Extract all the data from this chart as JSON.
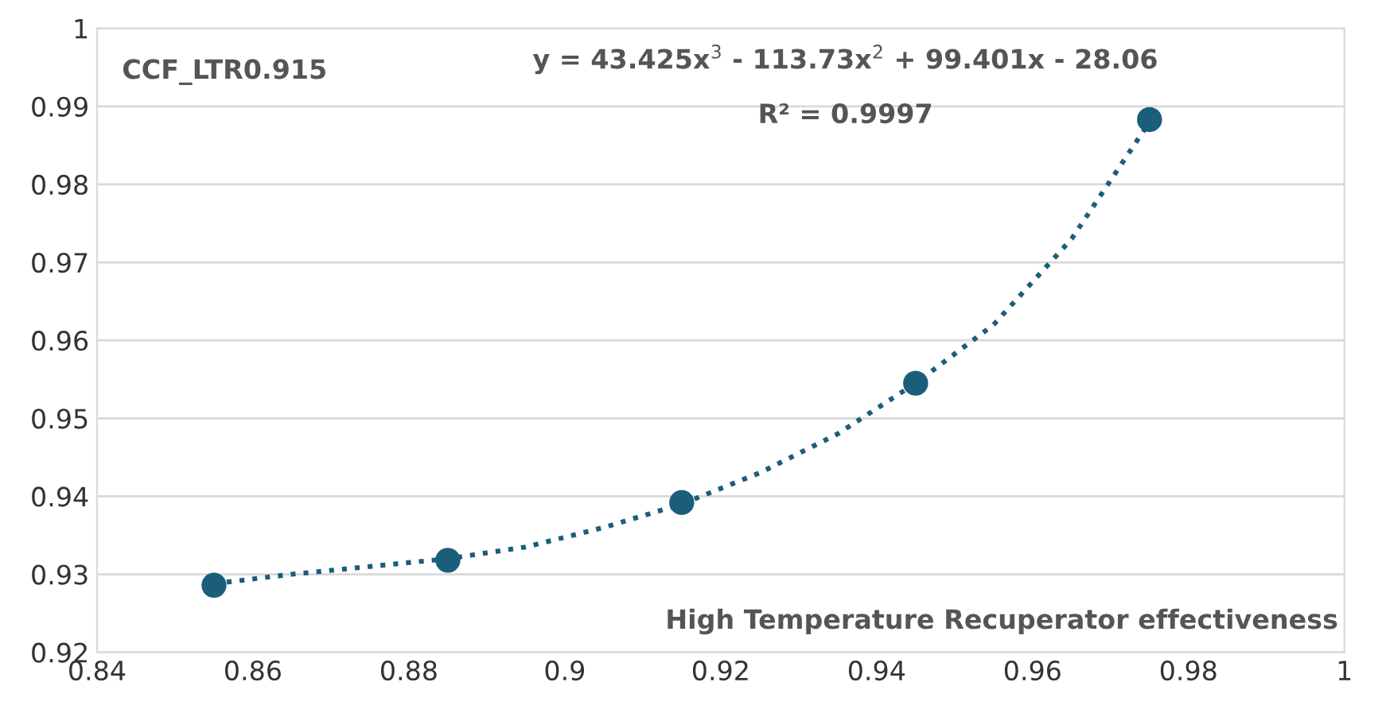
{
  "chart_data": {
    "type": "scatter",
    "xlabel": "High Temperature Recuperator effectiveness",
    "annotations": [
      "CCF_LTR0.915",
      "y = 43.425x$^{3}$ - 113.73x$^{2}$ + 99.401x - 28.06",
      "R² = 0.9997"
    ],
    "series": [
      {
        "type": "line",
        "color": "#1b5e7b",
        "line_style": "dotted",
        "marker": "none",
        "x": [
          0.855,
          0.865,
          0.875,
          0.885,
          0.895,
          0.905,
          0.915,
          0.925,
          0.935,
          0.945,
          0.955,
          0.965,
          0.975
        ],
        "values": [
          0.9288,
          0.93,
          0.931,
          0.932,
          0.9335,
          0.936,
          0.939,
          0.943,
          0.948,
          0.9545,
          0.962,
          0.973,
          0.988
        ]
      },
      {
        "color": "#1b5e7b",
        "marker": "circle",
        "x": [
          0.855,
          0.885,
          0.915,
          0.945,
          0.975
        ],
        "values": [
          0.9286,
          0.9318,
          0.9392,
          0.9545,
          0.9883
        ]
      }
    ],
    "xlim": [
      0.84,
      1
    ],
    "xticks": [
      0.84,
      0.86,
      0.88,
      0.9,
      0.92,
      0.94,
      0.96,
      0.98,
      1
    ],
    "ylim": [
      0.92,
      1
    ],
    "yticks": [
      0.92,
      0.93,
      0.94,
      0.95,
      0.96,
      0.97,
      0.98,
      0.99,
      1
    ],
    "grid": "y",
    "legend": false
  }
}
